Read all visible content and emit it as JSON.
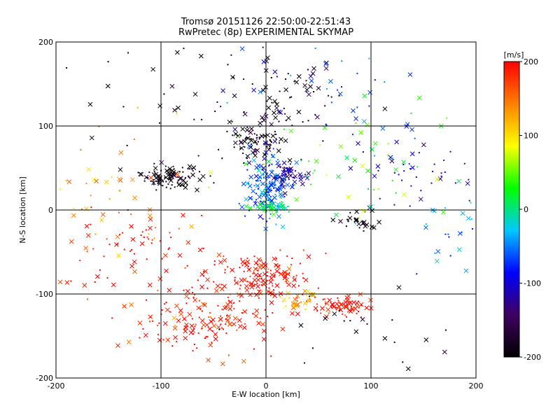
{
  "chart_data": {
    "type": "scatter",
    "title": "Tromsø 20151126 22:50:00-22:51:43",
    "subtitle": "RwPretec (8p) EXPERIMENTAL SKYMAP",
    "xlabel": "E-W location [km]",
    "ylabel": "N-S location [km]",
    "xlim": [
      -200,
      200
    ],
    "ylim": [
      -200,
      200
    ],
    "x_ticks": [
      "-200",
      "-100",
      "0",
      "100",
      "200"
    ],
    "y_ticks": [
      "-200",
      "-100",
      "0",
      "100",
      "200"
    ],
    "grid": true,
    "markers": [
      "cross",
      "dot"
    ],
    "colorbar": {
      "label": "[m/s]",
      "range": [
        -200,
        200
      ],
      "ticks": [
        "200",
        "100",
        "0",
        "-100",
        "-200"
      ],
      "colormap": [
        "#000000",
        "#400060",
        "#0000ff",
        "#00c8ff",
        "#00ff00",
        "#ffff00",
        "#ff8000",
        "#ff0000"
      ]
    },
    "clusters": [
      {
        "x": -90,
        "y": 40,
        "sx": 14,
        "sy": 7,
        "v": -200,
        "n": 110
      },
      {
        "x": -10,
        "y": 80,
        "sx": 16,
        "sy": 10,
        "v": -195,
        "n": 90
      },
      {
        "x": 15,
        "y": 130,
        "sx": 30,
        "sy": 25,
        "v": -190,
        "n": 70
      },
      {
        "x": 0,
        "y": 30,
        "sx": 12,
        "sy": 18,
        "v": -60,
        "n": 150
      },
      {
        "x": 20,
        "y": 42,
        "sx": 10,
        "sy": 6,
        "v": -120,
        "n": 60
      },
      {
        "x": 5,
        "y": 3,
        "sx": 10,
        "sy": 4,
        "v": 5,
        "n": 50
      },
      {
        "x": -5,
        "y": -80,
        "sx": 25,
        "sy": 15,
        "v": 200,
        "n": 160
      },
      {
        "x": -60,
        "y": -130,
        "sx": 35,
        "sy": 20,
        "v": 190,
        "n": 160
      },
      {
        "x": 70,
        "y": -115,
        "sx": 15,
        "sy": 7,
        "v": 195,
        "n": 70
      },
      {
        "x": 30,
        "y": -108,
        "sx": 10,
        "sy": 6,
        "v": 120,
        "n": 30
      },
      {
        "x": 90,
        "y": -15,
        "sx": 10,
        "sy": 6,
        "v": -200,
        "n": 30
      },
      {
        "x": -120,
        "y": -40,
        "sx": 40,
        "sy": 30,
        "v": 190,
        "n": 80
      },
      {
        "x": 150,
        "y": 40,
        "sx": 30,
        "sy": 25,
        "v": -110,
        "n": 45
      },
      {
        "x": 170,
        "y": -30,
        "sx": 20,
        "sy": 25,
        "v": -40,
        "n": 25
      },
      {
        "x": -150,
        "y": 30,
        "sx": 35,
        "sy": 40,
        "v": 130,
        "n": 40
      },
      {
        "x": 80,
        "y": 60,
        "sx": 50,
        "sy": 40,
        "v": 30,
        "n": 60
      },
      {
        "x": 60,
        "y": 150,
        "sx": 60,
        "sy": 30,
        "v": -70,
        "n": 40
      },
      {
        "x": -100,
        "y": 150,
        "sx": 60,
        "sy": 40,
        "v": -200,
        "n": 30
      },
      {
        "x": 100,
        "y": -150,
        "sx": 60,
        "sy": 30,
        "v": -200,
        "n": 25
      }
    ]
  }
}
